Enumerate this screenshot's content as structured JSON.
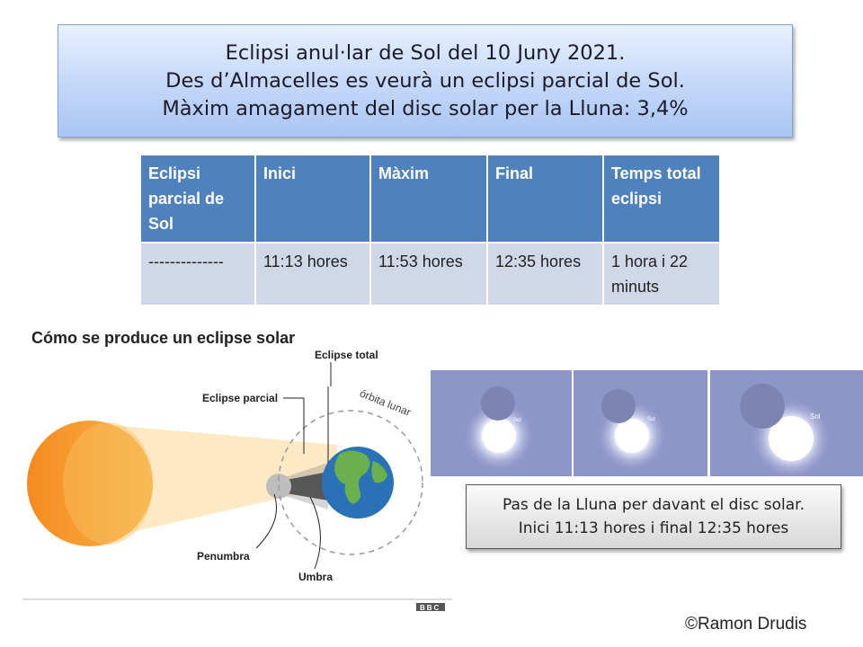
{
  "title": {
    "line1": "Eclipsi anul·lar de Sol del 10 Juny 2021.",
    "line2": "Des d’Almacelles es veurà un eclipsi parcial de Sol.",
    "line3": "Màxim amagament del disc solar per la Lluna: 3,4%"
  },
  "table": {
    "headers": [
      "Eclipsi parcial de Sol",
      "Inici",
      "Màxim",
      "Final",
      "Temps total eclipsi"
    ],
    "row": [
      "--------------",
      "11:13 hores",
      "11:53 hores",
      "12:35 hores",
      "1 hora i 22 minuts"
    ]
  },
  "diagram": {
    "title": "Cómo se produce un eclipse solar",
    "label_total": "Eclipse total",
    "label_partial": "Eclipse parcial",
    "label_orbit": "órbita lunar",
    "label_penumbra": "Penumbra",
    "label_umbra": "Umbra",
    "source": "BBC",
    "colors": {
      "sun": "#f39a2c",
      "light_cone": "#fde9c4",
      "earth_ocean": "#2a72b8",
      "earth_land": "#6ab04c",
      "moon": "#b9b9b9"
    }
  },
  "photos": {
    "sun_label": "Sol"
  },
  "caption": {
    "line1": "Pas de la Lluna per davant el disc solar.",
    "line2": "Inici 11:13 hores i final 12:35 hores"
  },
  "credit": "©Ramon Drudis"
}
